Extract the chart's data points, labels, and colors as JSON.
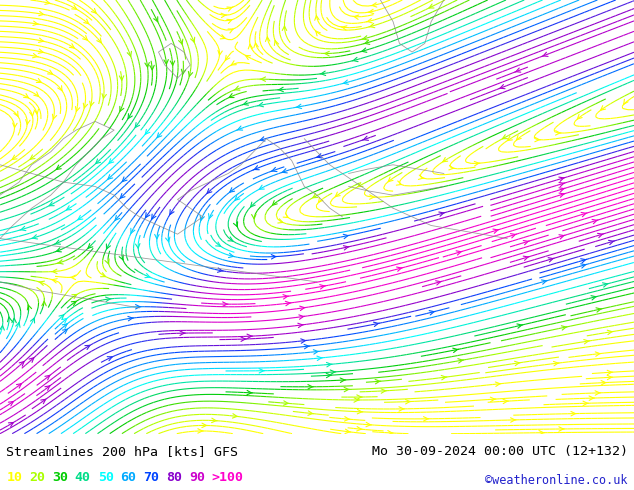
{
  "title_left": "Streamlines 200 hPa [kts] GFS",
  "title_right": "Mo 30-09-2024 00:00 UTC (12+132)",
  "credit": "©weatheronline.co.uk",
  "bg_color": "#b8d8a0",
  "land_color": "#c8e8b0",
  "ocean_color": "#d0e8f0",
  "font": "monospace",
  "title_fontsize": 9.5,
  "legend_fontsize": 9.5,
  "figsize": [
    6.34,
    4.9
  ],
  "dpi": 100,
  "legend_values": [
    "10",
    "20",
    "30",
    "40",
    "50",
    "60",
    "70",
    "80",
    "90",
    ">100"
  ],
  "legend_colors": [
    "#ffff00",
    "#aaff00",
    "#00cc00",
    "#00dd88",
    "#00ffff",
    "#00aaff",
    "#0044ff",
    "#8800cc",
    "#cc00cc",
    "#ff00cc"
  ],
  "speed_thresholds": [
    15,
    25,
    35,
    45,
    55,
    65,
    75,
    85,
    95
  ],
  "speed_colors": [
    "#ffff00",
    "#aaff00",
    "#00cc00",
    "#00dd88",
    "#00ffff",
    "#00aaff",
    "#0044ff",
    "#8800cc",
    "#cc00cc",
    "#ff00cc"
  ]
}
